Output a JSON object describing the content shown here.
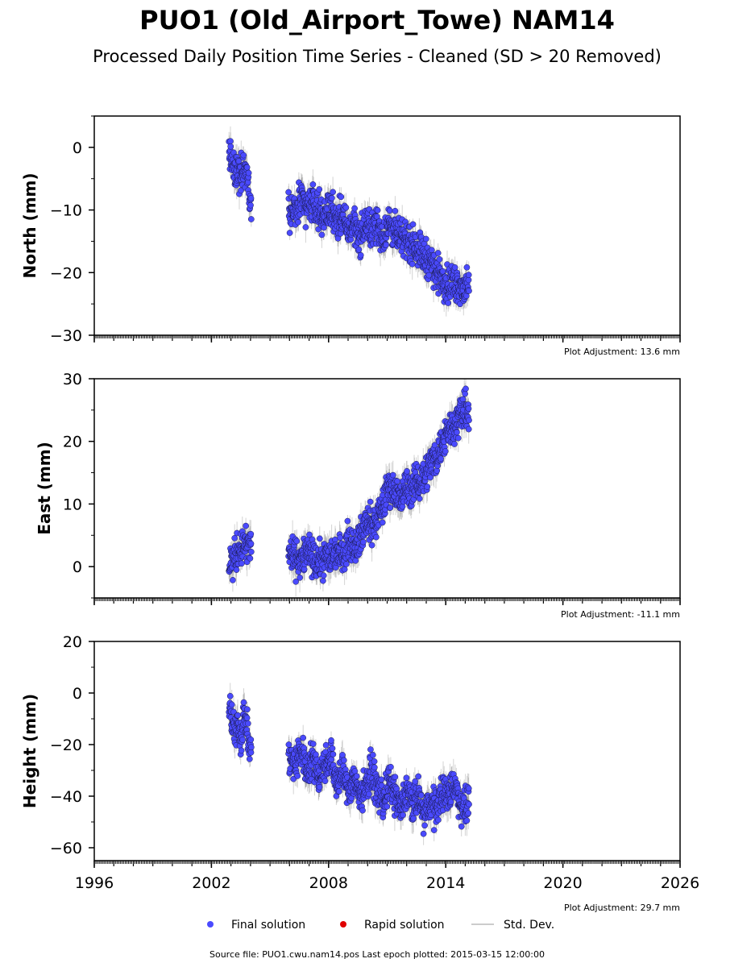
{
  "header": {
    "title": "PUO1 (Old_Airport_Towe) NAM14",
    "subtitle": "Processed Daily Position Time Series - Cleaned (SD > 20 Removed)"
  },
  "legend": {
    "final": "Final solution",
    "rapid": "Rapid solution",
    "std": "Std. Dev."
  },
  "footer": {
    "source": "Source file: PUO1.cwu.nam14.pos  Last epoch plotted: 2015-03-15 12:00:00"
  },
  "colors": {
    "final": "#4a4aff",
    "rapid": "#e00000",
    "std": "#bbbbbb",
    "axis": "#000000"
  },
  "chart_data": [
    {
      "type": "scatter",
      "ylabel": "North (mm)",
      "adjustment": "Plot Adjustment: 13.6 mm",
      "xlim": [
        1996,
        2026
      ],
      "ylim": [
        -30,
        5
      ],
      "yticks": [
        0,
        -10,
        -20,
        -30
      ],
      "ytick_labels": [
        "0",
        "−10",
        "−20",
        "−30"
      ],
      "xticks": [
        1996,
        2002,
        2008,
        2014,
        2020,
        2026
      ],
      "show_xtick_labels": false,
      "series": [
        {
          "type": "final",
          "x": [
            2002.9,
            2003.05,
            2003.2,
            2003.35,
            2003.5,
            2003.65,
            2003.8,
            2003.95,
            2006.0,
            2006.3,
            2006.6,
            2006.9,
            2007.2,
            2007.5,
            2007.8,
            2008.1,
            2008.4,
            2008.7,
            2009.0,
            2009.3,
            2009.6,
            2009.9,
            2010.2,
            2010.5,
            2010.8,
            2011.1,
            2011.4,
            2011.7,
            2012.0,
            2012.3,
            2012.6,
            2012.9,
            2013.2,
            2013.5,
            2013.8,
            2014.1,
            2014.4,
            2014.7,
            2015.0,
            2015.2
          ],
          "y": [
            -0.5,
            -2.5,
            -4.5,
            -3.5,
            -4.0,
            -3.0,
            -3.5,
            -8.0,
            -10.0,
            -10.5,
            -8.5,
            -9.5,
            -9.0,
            -10.0,
            -11.0,
            -9.5,
            -11.5,
            -11.0,
            -13.5,
            -12.0,
            -14.5,
            -12.5,
            -13.0,
            -12.5,
            -14.5,
            -12.0,
            -13.5,
            -15.0,
            -14.5,
            -15.5,
            -16.0,
            -17.5,
            -18.0,
            -20.0,
            -20.5,
            -22.0,
            -21.5,
            -22.0,
            -22.5,
            -23.0
          ]
        }
      ]
    },
    {
      "type": "scatter",
      "ylabel": "East (mm)",
      "adjustment": "Plot Adjustment: -11.1 mm",
      "xlim": [
        1996,
        2026
      ],
      "ylim": [
        -5,
        30
      ],
      "yticks": [
        0,
        10,
        20,
        30
      ],
      "ytick_labels": [
        "0",
        "10",
        "20",
        "30"
      ],
      "xticks": [
        1996,
        2002,
        2008,
        2014,
        2020,
        2026
      ],
      "show_xtick_labels": false,
      "series": [
        {
          "type": "final",
          "x": [
            2002.9,
            2003.05,
            2003.2,
            2003.35,
            2003.5,
            2003.65,
            2003.8,
            2003.95,
            2006.0,
            2006.3,
            2006.6,
            2006.9,
            2007.2,
            2007.5,
            2007.8,
            2008.1,
            2008.4,
            2008.7,
            2009.0,
            2009.3,
            2009.6,
            2009.9,
            2010.2,
            2010.5,
            2010.8,
            2011.1,
            2011.4,
            2011.7,
            2012.0,
            2012.3,
            2012.6,
            2012.9,
            2013.2,
            2013.5,
            2013.8,
            2014.1,
            2014.4,
            2014.7,
            2015.0,
            2015.2
          ],
          "y": [
            0.5,
            1.0,
            1.5,
            2.5,
            3.0,
            3.5,
            3.0,
            3.5,
            2.0,
            1.5,
            1.0,
            2.5,
            1.0,
            0.5,
            1.5,
            1.5,
            2.5,
            2.0,
            4.0,
            3.5,
            4.5,
            7.0,
            6.5,
            7.5,
            10.0,
            13.0,
            12.0,
            10.5,
            13.0,
            12.5,
            13.5,
            14.5,
            16.5,
            17.5,
            19.5,
            22.0,
            22.5,
            24.0,
            25.0,
            24.5
          ]
        }
      ]
    },
    {
      "type": "scatter",
      "ylabel": "Height (mm)",
      "adjustment": "Plot Adjustment: 29.7 mm",
      "xlim": [
        1996,
        2026
      ],
      "ylim": [
        -65,
        20
      ],
      "yticks": [
        20,
        0,
        -20,
        -40,
        -60
      ],
      "ytick_labels": [
        "20",
        "0",
        "−20",
        "−40",
        "−60"
      ],
      "xticks": [
        1996,
        2002,
        2008,
        2014,
        2020,
        2026
      ],
      "xtick_labels": [
        "1996",
        "2002",
        "2008",
        "2014",
        "2020",
        "2026"
      ],
      "show_xtick_labels": true,
      "series": [
        {
          "type": "final",
          "x": [
            2002.9,
            2003.05,
            2003.2,
            2003.35,
            2003.5,
            2003.65,
            2003.8,
            2003.95,
            2006.0,
            2006.3,
            2006.6,
            2006.9,
            2007.2,
            2007.5,
            2007.8,
            2008.1,
            2008.4,
            2008.7,
            2009.0,
            2009.3,
            2009.6,
            2009.9,
            2010.2,
            2010.5,
            2010.8,
            2011.1,
            2011.4,
            2011.7,
            2012.0,
            2012.3,
            2012.6,
            2012.9,
            2013.2,
            2013.5,
            2013.8,
            2014.1,
            2014.4,
            2014.7,
            2015.0,
            2015.2
          ],
          "y": [
            -5,
            -12,
            -15,
            -10,
            -18,
            -8,
            -12,
            -22,
            -25,
            -28,
            -22,
            -30,
            -25,
            -32,
            -28,
            -24,
            -35,
            -30,
            -38,
            -33,
            -40,
            -36,
            -30,
            -38,
            -42,
            -35,
            -40,
            -45,
            -38,
            -44,
            -40,
            -48,
            -42,
            -45,
            -38,
            -40,
            -35,
            -42,
            -45,
            -40
          ]
        }
      ]
    }
  ]
}
